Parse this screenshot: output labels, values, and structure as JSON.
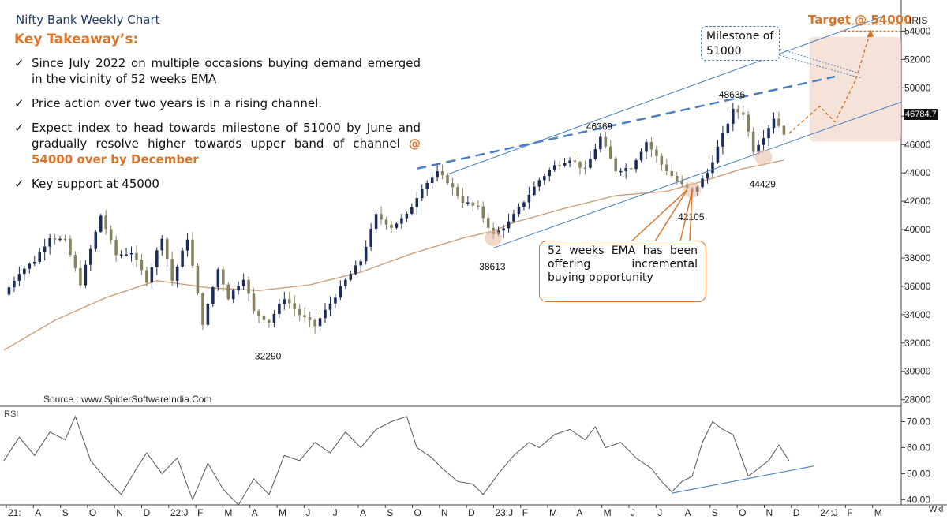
{
  "header": {
    "title": "Nifty Bank Weekly Chart",
    "takeaway_title": "Key Takeaway’s:",
    "iris": "IRIS",
    "target": "Target @ 54000",
    "source": "Source : www.SpiderSoftwareIndia.Com",
    "wkl": "Wkl",
    "rsi_label": "RSI"
  },
  "bullets": [
    {
      "text": "Since July 2022 on multiple occasions buying demand emerged in the vicinity of 52 weeks EMA",
      "highlight": ""
    },
    {
      "text": "Price action over two years is in a rising channel.",
      "highlight": ""
    },
    {
      "text": "Expect index to head towards milestone of 51000 by June and gradually resolve higher towards upper band of channel ",
      "highlight": "@ 54000 over by December"
    },
    {
      "text": "Key support at 45000",
      "highlight": ""
    }
  ],
  "check": "✓",
  "callouts": {
    "milestone": "Milestone of 51000",
    "ema": "52 weeks EMA has been offering incremental buying opportunity"
  },
  "last_price": "46784.7",
  "colors": {
    "up_candle": "#1b2c5c",
    "down_candle": "#86815e",
    "ema": "#c9a07a",
    "channel": "#4a7fc1",
    "accent": "#d9742a",
    "rsi_line": "#555555"
  },
  "chart_data": {
    "type": "candlestick",
    "title": "Nifty Bank Weekly Chart",
    "ylim": [
      27700,
      55200
    ],
    "y_ticks": [
      28000,
      30000,
      32000,
      34000,
      36000,
      38000,
      40000,
      42000,
      44000,
      46000,
      48000,
      50000,
      52000,
      54000
    ],
    "x_labels": [
      "21:",
      "A",
      "S",
      "O",
      "N",
      "D",
      "22:J",
      "F",
      "M",
      "A",
      "M",
      "J",
      "J",
      "A",
      "S",
      "O",
      "N",
      "D",
      "23:J",
      "F",
      "M",
      "A",
      "M",
      "J",
      "J",
      "A",
      "S",
      "O",
      "N",
      "D",
      "24:J",
      "F",
      "M"
    ],
    "price_path": [
      [
        0,
        35400
      ],
      [
        3,
        37000
      ],
      [
        6,
        37800
      ],
      [
        9,
        39500
      ],
      [
        12,
        39200
      ],
      [
        15,
        36200
      ],
      [
        19,
        41000
      ],
      [
        22,
        38200
      ],
      [
        25,
        38400
      ],
      [
        28,
        36400
      ],
      [
        31,
        39500
      ],
      [
        33,
        36400
      ],
      [
        36,
        39400
      ],
      [
        39,
        33400
      ],
      [
        42,
        37200
      ],
      [
        44,
        35200
      ],
      [
        47,
        36600
      ],
      [
        49,
        34200
      ],
      [
        52,
        33500
      ],
      [
        55,
        35200
      ],
      [
        58,
        34000
      ],
      [
        61,
        33200
      ],
      [
        64,
        34800
      ],
      [
        67,
        36400
      ],
      [
        70,
        37800
      ],
      [
        73,
        41000
      ],
      [
        76,
        40200
      ],
      [
        79,
        41000
      ],
      [
        82,
        43000
      ],
      [
        85,
        44000
      ],
      [
        87,
        43400
      ],
      [
        90,
        42000
      ],
      [
        93,
        41500
      ],
      [
        96,
        39600
      ],
      [
        99,
        40500
      ],
      [
        102,
        42000
      ],
      [
        105,
        43500
      ],
      [
        108,
        44500
      ],
      [
        111,
        45000
      ],
      [
        114,
        44200
      ],
      [
        117,
        46500
      ],
      [
        120,
        44200
      ],
      [
        123,
        44400
      ],
      [
        126,
        46200
      ],
      [
        129,
        44600
      ],
      [
        132,
        43400
      ],
      [
        135,
        42600
      ],
      [
        138,
        44000
      ],
      [
        141,
        46700
      ],
      [
        143,
        48400
      ],
      [
        145,
        48200
      ],
      [
        147,
        45600
      ],
      [
        149,
        46600
      ],
      [
        151,
        47900
      ],
      [
        153,
        46800
      ]
    ],
    "ema_path": [
      [
        0,
        31500
      ],
      [
        10,
        33600
      ],
      [
        20,
        35200
      ],
      [
        30,
        36400
      ],
      [
        40,
        35900
      ],
      [
        50,
        35700
      ],
      [
        60,
        36100
      ],
      [
        70,
        37000
      ],
      [
        80,
        38300
      ],
      [
        90,
        39400
      ],
      [
        96,
        39900
      ],
      [
        100,
        40500
      ],
      [
        110,
        41500
      ],
      [
        120,
        42400
      ],
      [
        130,
        42700
      ],
      [
        136,
        43300
      ],
      [
        145,
        44300
      ],
      [
        153,
        44900
      ]
    ],
    "annotations": [
      {
        "label": "32290",
        "x": 52,
        "y": 32290
      },
      {
        "label": "38613",
        "x": 96,
        "y": 38613
      },
      {
        "label": "46369",
        "x": 117,
        "y": 46369
      },
      {
        "label": "42105",
        "x": 135,
        "y": 42105
      },
      {
        "label": "48636",
        "x": 143,
        "y": 48636
      },
      {
        "label": "44429",
        "x": 149,
        "y": 44429
      }
    ],
    "channel": {
      "upper": [
        [
          87,
          43900
        ],
        [
          172,
          55000
        ]
      ],
      "lower": [
        [
          96,
          38700
        ],
        [
          176,
          49000
        ]
      ],
      "dashed_top": [
        [
          81,
          44300
        ],
        [
          163,
          50800
        ]
      ]
    },
    "projection": [
      [
        154,
        46800
      ],
      [
        160,
        48700
      ],
      [
        163,
        47600
      ],
      [
        167,
        50500
      ],
      [
        170,
        54000
      ]
    ],
    "target": 54000,
    "milestone": 51000,
    "rsi": {
      "ylim": [
        38,
        75
      ],
      "y_ticks": [
        40,
        50,
        60,
        70
      ],
      "values": [
        [
          0,
          55
        ],
        [
          3,
          64
        ],
        [
          6,
          57
        ],
        [
          9,
          66
        ],
        [
          12,
          63
        ],
        [
          14,
          72
        ],
        [
          17,
          55
        ],
        [
          20,
          48
        ],
        [
          23,
          42
        ],
        [
          26,
          52
        ],
        [
          28,
          58
        ],
        [
          31,
          50
        ],
        [
          34,
          56
        ],
        [
          37,
          40
        ],
        [
          40,
          54
        ],
        [
          43,
          44
        ],
        [
          46,
          38
        ],
        [
          49,
          48
        ],
        [
          52,
          42
        ],
        [
          55,
          57
        ],
        [
          58,
          55
        ],
        [
          61,
          62
        ],
        [
          64,
          58
        ],
        [
          67,
          66
        ],
        [
          70,
          60
        ],
        [
          73,
          67
        ],
        [
          76,
          70
        ],
        [
          79,
          72
        ],
        [
          81,
          60
        ],
        [
          84,
          56
        ],
        [
          86,
          52
        ],
        [
          89,
          47
        ],
        [
          92,
          46
        ],
        [
          94,
          42
        ],
        [
          97,
          50
        ],
        [
          100,
          57
        ],
        [
          103,
          62
        ],
        [
          105,
          60
        ],
        [
          108,
          65
        ],
        [
          111,
          67
        ],
        [
          114,
          63
        ],
        [
          116,
          68
        ],
        [
          118,
          60
        ],
        [
          121,
          62
        ],
        [
          124,
          56
        ],
        [
          127,
          52
        ],
        [
          129,
          47
        ],
        [
          131,
          43
        ],
        [
          133,
          47
        ],
        [
          135,
          49
        ],
        [
          137,
          62
        ],
        [
          139,
          70
        ],
        [
          141,
          67
        ],
        [
          143,
          65
        ],
        [
          146,
          49
        ],
        [
          148,
          52
        ],
        [
          150,
          55
        ],
        [
          152,
          61
        ],
        [
          154,
          55
        ]
      ],
      "trendline": [
        [
          131,
          42.5
        ],
        [
          159,
          53
        ]
      ]
    }
  }
}
